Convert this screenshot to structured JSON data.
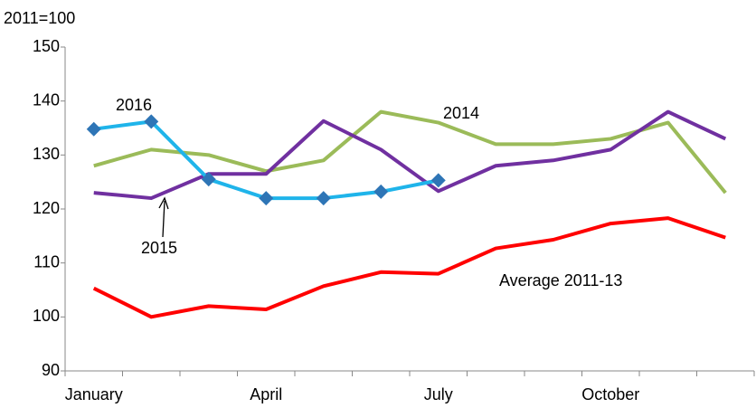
{
  "chart_data": {
    "type": "line",
    "y_axis_label": "2011=100",
    "categories": [
      "January",
      null,
      null,
      "April",
      null,
      null,
      "July",
      null,
      null,
      "October",
      null,
      null
    ],
    "ylim": [
      90,
      150
    ],
    "yticks": [
      90,
      100,
      110,
      120,
      130,
      140,
      150
    ],
    "grid": false,
    "series": [
      {
        "name": "Average 2011-13",
        "color": "#ff0000",
        "values": [
          105.3,
          100,
          102,
          101.4,
          105.7,
          108.3,
          108,
          112.7,
          114.3,
          117.3,
          118.3,
          114.7
        ]
      },
      {
        "name": "2014",
        "color": "#9bbb59",
        "values": [
          128,
          131,
          130,
          127,
          129,
          138,
          136,
          132,
          132,
          133,
          136,
          123
        ]
      },
      {
        "name": "2015",
        "color": "#7030a0",
        "values": [
          123,
          122,
          126.5,
          126.5,
          136.3,
          131,
          123.3,
          128,
          129,
          131,
          138,
          133
        ]
      },
      {
        "name": "2016",
        "color": "#1fb4ea",
        "marker": "diamond",
        "marker_color": "#2e75b6",
        "values": [
          134.8,
          136.2,
          125.5,
          122,
          122,
          123.2,
          125.3,
          null,
          null,
          null,
          null,
          null
        ]
      }
    ]
  }
}
